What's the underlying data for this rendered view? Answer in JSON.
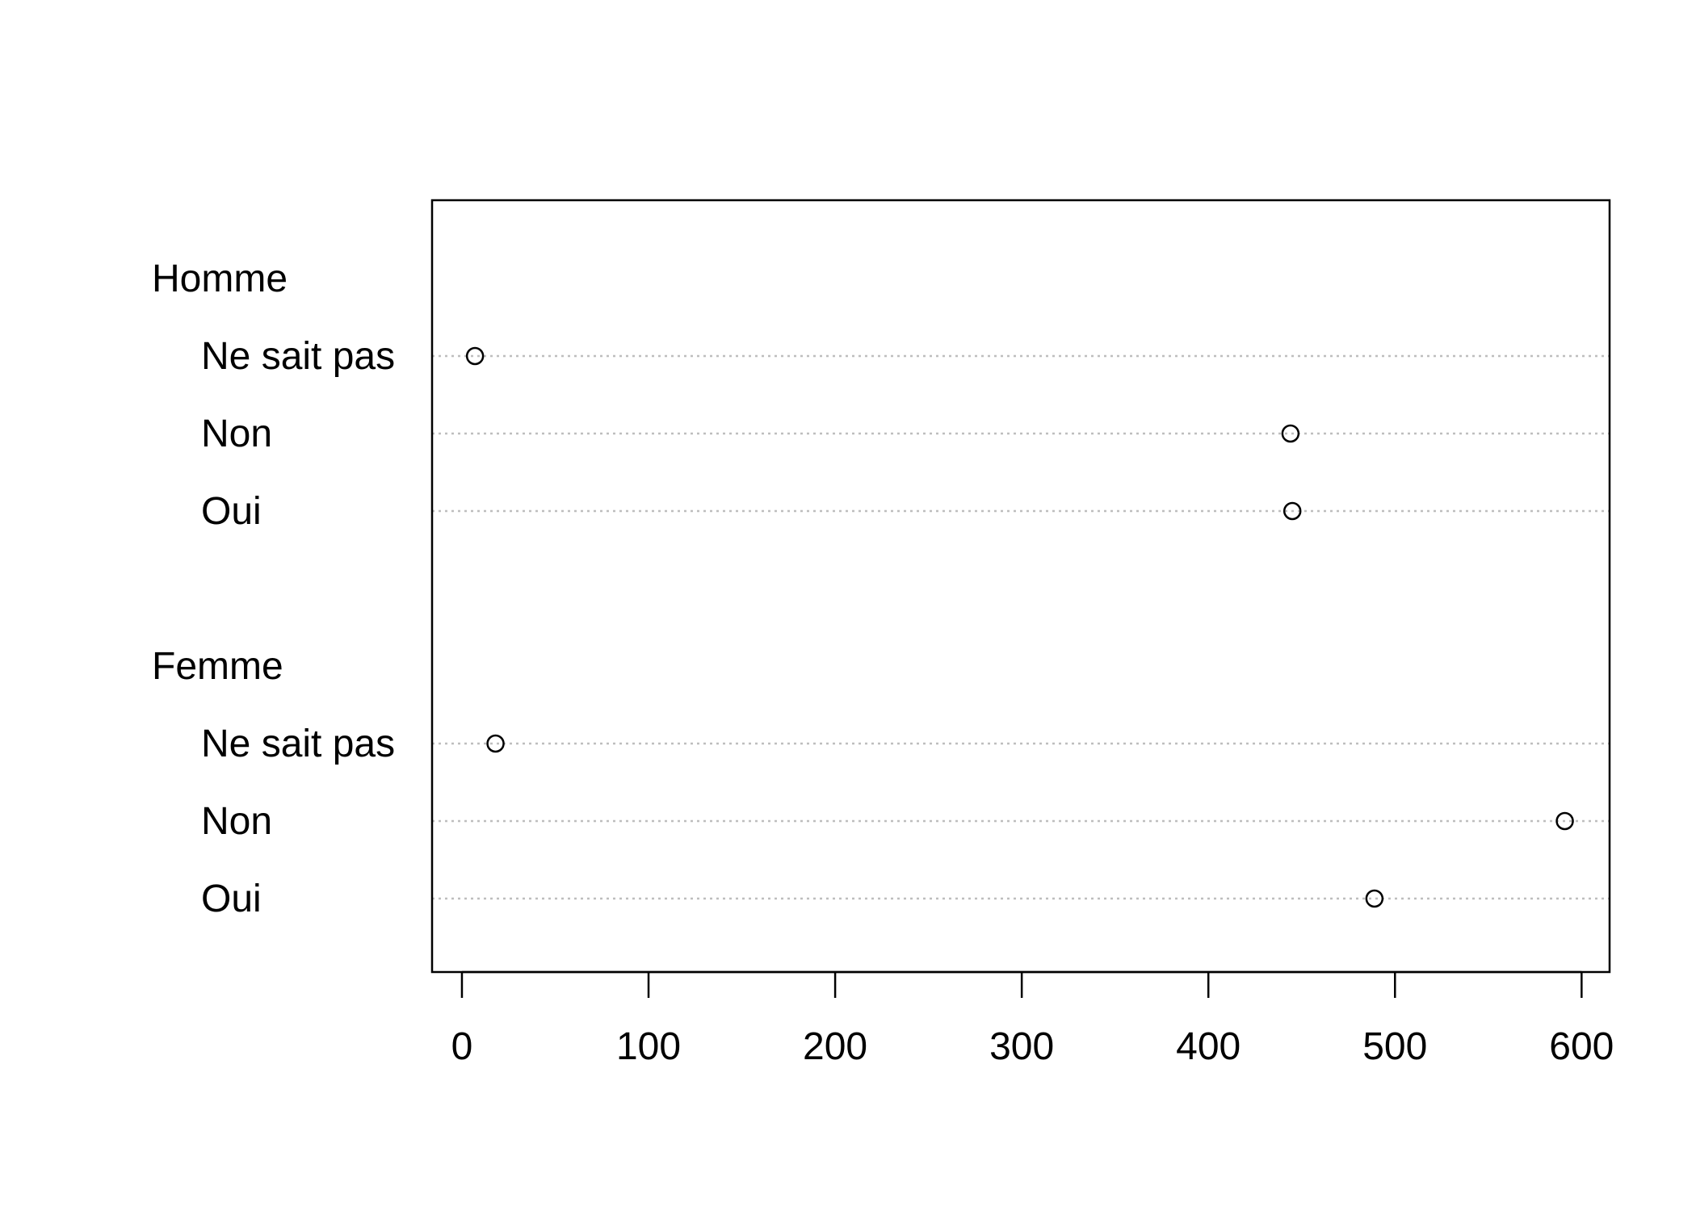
{
  "chart_data": {
    "type": "scatter",
    "subtype": "dotchart",
    "title": "",
    "xlabel": "",
    "ylabel": "",
    "xlim": [
      -16,
      615
    ],
    "x_ticks": [
      "0",
      "100",
      "200",
      "300",
      "400",
      "500",
      "600"
    ],
    "grid": "dotted horizontal guide lines",
    "groups": [
      {
        "label": "Homme",
        "items": [
          {
            "label": "Ne sait pas",
            "value": 7
          },
          {
            "label": "Non",
            "value": 444
          },
          {
            "label": "Oui",
            "value": 445
          }
        ]
      },
      {
        "label": "Femme",
        "items": [
          {
            "label": "Ne sait pas",
            "value": 18
          },
          {
            "label": "Non",
            "value": 591
          },
          {
            "label": "Oui",
            "value": 489
          }
        ]
      }
    ],
    "colors": {
      "point": "#000000",
      "guide": "#bebebe",
      "axis": "#000000"
    }
  }
}
